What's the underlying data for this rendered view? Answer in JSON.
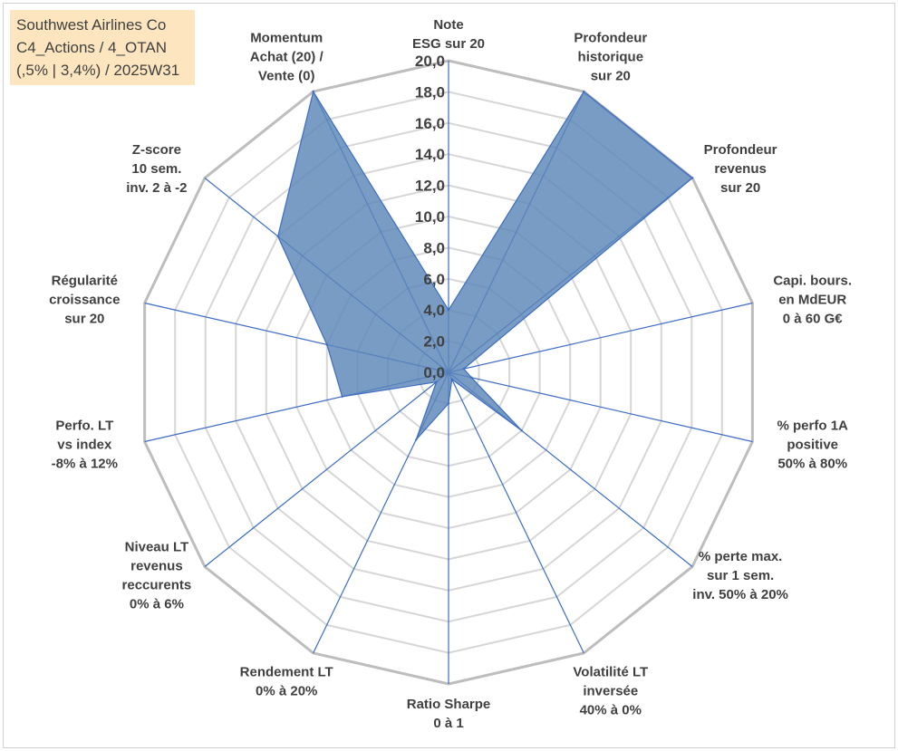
{
  "title_box": {
    "line1": "Southwest Airlines Co",
    "line2": "C4_Actions / 4_OTAN",
    "line3": "(,5% | 3,4%) / 2025W31"
  },
  "chart_data": {
    "type": "radar",
    "rmin": 0,
    "rmax": 20,
    "tick_step": 2,
    "tick_labels": [
      "0,0",
      "2,0",
      "4,0",
      "6,0",
      "8,0",
      "10,0",
      "12,0",
      "14,0",
      "16,0",
      "18,0",
      "20,0"
    ],
    "grid": true,
    "colors": {
      "fill": "#5b86b8",
      "stroke": "#3d6cc4",
      "grid": "#c0c0c0",
      "axis": "#3d6cc4",
      "text": "#404040"
    },
    "categories": [
      "Note ESG sur 20",
      "Profondeur historique sur 20",
      "Profondeur revenus sur 20",
      "Capi. bours. en MdEUR 0 à 60 G€",
      "% perfo 1A positive 50% à 80%",
      "% perte max. sur 1 sem. inv. 50% à 20%",
      "Volatilité LT inversée 40% à 0%",
      "Ratio Sharpe 0 à 1",
      "Rendement LT 0% à 20%",
      "Niveau LT revenus reccurents 0% à 6%",
      "Perfo. LT vs index -8% à 12%",
      "Régularité croissance sur 20",
      "Z-score 10 sem. inv. 2 à -2",
      "Momentum Achat (20) / Vente (0)"
    ],
    "category_lines": [
      [
        "Note",
        "ESG sur 20"
      ],
      [
        "Profondeur",
        "historique",
        "sur 20"
      ],
      [
        "Profondeur",
        "revenus",
        "sur 20"
      ],
      [
        "Capi. bours.",
        "en MdEUR",
        "0 à 60 G€"
      ],
      [
        "% perfo 1A",
        "positive",
        "50% à 80%"
      ],
      [
        "% perte max.",
        "sur 1 sem.",
        "inv. 50% à 20%"
      ],
      [
        "Volatilité LT",
        "inversée",
        "40% à 0%"
      ],
      [
        "Ratio Sharpe",
        "0 à 1"
      ],
      [
        "Rendement LT",
        "0% à 20%"
      ],
      [
        "Niveau LT",
        "revenus",
        "reccurents",
        "0% à 6%"
      ],
      [
        "Perfo. LT",
        "vs index",
        "-8% à 12%"
      ],
      [
        "Régularité",
        "croissance",
        "sur 20"
      ],
      [
        "Z-score",
        "10 sem.",
        "inv. 2 à -2"
      ],
      [
        "Momentum",
        "Achat (20) /",
        "Vente (0)"
      ]
    ],
    "values": [
      4.0,
      20.0,
      20.0,
      1.0,
      1.5,
      6.0,
      0.5,
      2.0,
      4.8,
      1.0,
      7.0,
      8.0,
      14.0,
      20.0
    ]
  }
}
